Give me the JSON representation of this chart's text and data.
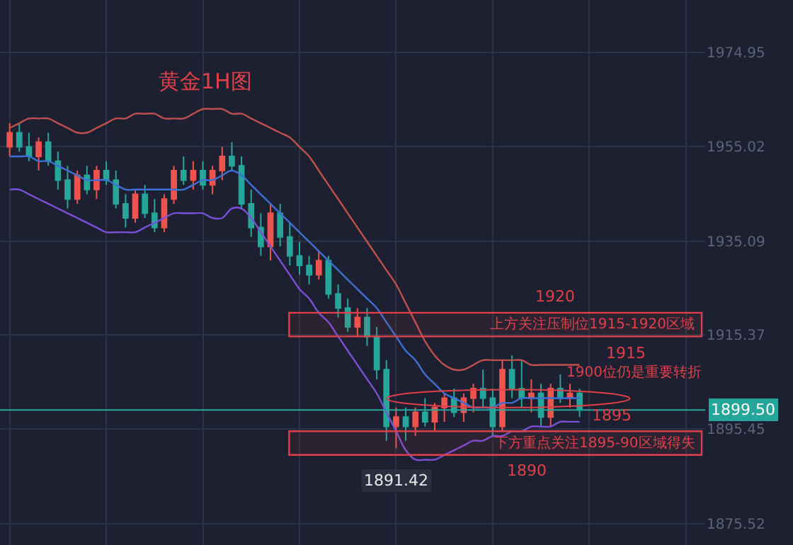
{
  "chart_data": {
    "type": "candlestick",
    "title": "黄金1H图",
    "categories": [
      null,
      null,
      null,
      null,
      null,
      null,
      null,
      null,
      null,
      null,
      null,
      null,
      null,
      null,
      null,
      null,
      null,
      null,
      null,
      null,
      null,
      null,
      null,
      null,
      null,
      null,
      null,
      null,
      null,
      null,
      null,
      null,
      null,
      null,
      null,
      null,
      null,
      null,
      null,
      null,
      null,
      null,
      null,
      null,
      null,
      null,
      null,
      null,
      null,
      null,
      null,
      null,
      null,
      null,
      null,
      null,
      null,
      null,
      null,
      null
    ],
    "ohlc": [
      [
        1955,
        1960,
        1953,
        1958
      ],
      [
        1958,
        1960,
        1954,
        1955
      ],
      [
        1955,
        1958,
        1952,
        1953
      ],
      [
        1953,
        1957,
        1950,
        1956
      ],
      [
        1956,
        1958,
        1951,
        1952
      ],
      [
        1952,
        1954,
        1946,
        1948
      ],
      [
        1948,
        1951,
        1942,
        1944
      ],
      [
        1944,
        1950,
        1943,
        1949
      ],
      [
        1949,
        1951,
        1945,
        1946
      ],
      [
        1946,
        1951,
        1944,
        1950
      ],
      [
        1950,
        1952,
        1947,
        1948
      ],
      [
        1948,
        1950,
        1942,
        1943
      ],
      [
        1943,
        1945,
        1938,
        1940
      ],
      [
        1940,
        1946,
        1939,
        1945
      ],
      [
        1945,
        1947,
        1940,
        1941
      ],
      [
        1941,
        1944,
        1937,
        1938
      ],
      [
        1938,
        1945,
        1937,
        1944
      ],
      [
        1944,
        1951,
        1943,
        1950
      ],
      [
        1950,
        1953,
        1947,
        1948
      ],
      [
        1948,
        1952,
        1946,
        1950
      ],
      [
        1950,
        1952,
        1946,
        1947
      ],
      [
        1947,
        1951,
        1945,
        1950
      ],
      [
        1950,
        1955,
        1948,
        1953
      ],
      [
        1953,
        1956,
        1950,
        1951
      ],
      [
        1951,
        1953,
        1942,
        1943
      ],
      [
        1943,
        1946,
        1936,
        1938
      ],
      [
        1938,
        1941,
        1932,
        1934
      ],
      [
        1934,
        1943,
        1931,
        1941
      ],
      [
        1941,
        1943,
        1934,
        1936
      ],
      [
        1936,
        1939,
        1930,
        1932
      ],
      [
        1932,
        1935,
        1928,
        1930
      ],
      [
        1930,
        1932,
        1926,
        1928
      ],
      [
        1928,
        1933,
        1927,
        1931
      ],
      [
        1931,
        1932,
        1923,
        1924
      ],
      [
        1924,
        1926,
        1919,
        1921
      ],
      [
        1921,
        1923,
        1916,
        1917
      ],
      [
        1917,
        1921,
        1915,
        1919
      ],
      [
        1919,
        1921,
        1913,
        1915
      ],
      [
        1915,
        1917,
        1906,
        1908
      ],
      [
        1908,
        1910,
        1893,
        1896
      ],
      [
        1896,
        1900,
        1891.42,
        1898
      ],
      [
        1898,
        1900,
        1893,
        1896
      ],
      [
        1896,
        1900,
        1894,
        1899
      ],
      [
        1899,
        1902,
        1896,
        1897
      ],
      [
        1897,
        1901,
        1895,
        1900
      ],
      [
        1900,
        1903,
        1897,
        1902
      ],
      [
        1902,
        1904,
        1898,
        1899
      ],
      [
        1899,
        1903,
        1897,
        1902
      ],
      [
        1902,
        1905,
        1899,
        1904
      ],
      [
        1904,
        1908,
        1900,
        1902
      ],
      [
        1902,
        1904,
        1894,
        1896
      ],
      [
        1896,
        1910,
        1895,
        1908
      ],
      [
        1908,
        1911,
        1902,
        1904
      ],
      [
        1904,
        1910,
        1900,
        1902
      ],
      [
        1902,
        1906,
        1899,
        1903
      ],
      [
        1903,
        1905,
        1896,
        1898
      ],
      [
        1898,
        1905,
        1896,
        1904
      ],
      [
        1904,
        1907,
        1901,
        1902
      ],
      [
        1902,
        1905,
        1900,
        1903
      ],
      [
        1903,
        1904,
        1898,
        1899.5
      ]
    ],
    "colors": [
      "#ef5350",
      "#26a69a",
      "#26a69a",
      "#ef5350",
      "#26a69a",
      "#26a69a",
      "#26a69a",
      "#ef5350",
      "#26a69a",
      "#ef5350",
      "#26a69a",
      "#26a69a",
      "#26a69a",
      "#ef5350",
      "#26a69a",
      "#26a69a",
      "#ef5350",
      "#ef5350",
      "#26a69a",
      "#ef5350",
      "#26a69a",
      "#ef5350",
      "#ef5350",
      "#26a69a",
      "#26a69a",
      "#26a69a",
      "#26a69a",
      "#ef5350",
      "#26a69a",
      "#26a69a",
      "#26a69a",
      "#26a69a",
      "#ef5350",
      "#26a69a",
      "#26a69a",
      "#26a69a",
      "#ef5350",
      "#26a69a",
      "#26a69a",
      "#26a69a",
      "#ef5350",
      "#26a69a",
      "#ef5350",
      "#26a69a",
      "#ef5350",
      "#ef5350",
      "#26a69a",
      "#ef5350",
      "#ef5350",
      "#26a69a",
      "#26a69a",
      "#ef5350",
      "#26a69a",
      "#26a69a",
      "#ef5350",
      "#26a69a",
      "#ef5350",
      "#26a69a",
      "#ef5350",
      "#26a69a"
    ],
    "series": [
      {
        "type": "line",
        "color": "#c0504d",
        "values": [
          1959,
          1960,
          1961,
          1961,
          1961,
          1960,
          1959,
          1958,
          1958,
          1959,
          1960,
          1961,
          1961,
          1962,
          1962,
          1962,
          1961,
          1961,
          1961,
          1962,
          1963,
          1963,
          1963,
          1962,
          1962,
          1961,
          1960,
          1959,
          1958,
          1957,
          1955,
          1953,
          1950,
          1947,
          1944,
          1941,
          1938,
          1935,
          1932,
          1929,
          1926,
          1922,
          1918,
          1914,
          1911,
          1909,
          1908,
          1908,
          1909,
          1910,
          1910,
          1910,
          1910,
          1910,
          1909,
          1909,
          1909,
          1909,
          1909,
          1909
        ]
      },
      {
        "type": "line",
        "color": "#3d6fd6",
        "values": [
          1953,
          1953,
          1953,
          1952,
          1952,
          1951,
          1950,
          1949,
          1948,
          1948,
          1948,
          1947,
          1946,
          1946,
          1946,
          1946,
          1946,
          1946,
          1946,
          1947,
          1948,
          1948,
          1949,
          1950,
          1949,
          1947,
          1945,
          1943,
          1941,
          1939,
          1937,
          1935,
          1933,
          1931,
          1929,
          1927,
          1925,
          1923,
          1921,
          1918,
          1915,
          1912,
          1910,
          1907,
          1905,
          1903,
          1902,
          1901,
          1900,
          1900,
          1900,
          1901,
          1901,
          1902,
          1902,
          1902,
          1902,
          1902,
          1902,
          1902
        ]
      },
      {
        "type": "line",
        "color": "#7b4fd8",
        "values": [
          1946,
          1946,
          1945,
          1944,
          1943,
          1942,
          1941,
          1940,
          1939,
          1938,
          1937,
          1937,
          1937,
          1937,
          1938,
          1939,
          1940,
          1941,
          1941,
          1941,
          1941,
          1940,
          1940,
          1942,
          1942,
          1940,
          1937,
          1934,
          1931,
          1928,
          1925,
          1923,
          1920,
          1918,
          1915,
          1912,
          1909,
          1906,
          1903,
          1899,
          1895,
          1891,
          1889,
          1889,
          1889,
          1890,
          1891,
          1892,
          1893,
          1893,
          1894,
          1894,
          1895,
          1895,
          1896,
          1896,
          1896,
          1897,
          1897,
          1897
        ]
      }
    ],
    "ylim": [
      1871,
      1986
    ],
    "yticks": [
      1875.52,
      1895.45,
      1915.37,
      1935.09,
      1955.02,
      1974.95
    ],
    "tick_labels": "y",
    "grid": true,
    "ref_lines": [
      {
        "axis": "y",
        "value": 1899.5,
        "label": "1899.50",
        "color": "#26a69a"
      }
    ],
    "bands": [
      {
        "axis": "y",
        "from": 1915,
        "to": 1920,
        "label": "上方关注压制位1915-1920区域",
        "color": "#e0404a"
      },
      {
        "axis": "y",
        "from": 1890,
        "to": 1895,
        "label": "下方重点关注1895-90区域得失",
        "color": "#e0404a"
      }
    ],
    "annotations": [
      "1920",
      "1915",
      "1895",
      "1890",
      "1900位仍是重要转折",
      {
        "text": "1891.42",
        "y": 1891.42
      }
    ]
  }
}
